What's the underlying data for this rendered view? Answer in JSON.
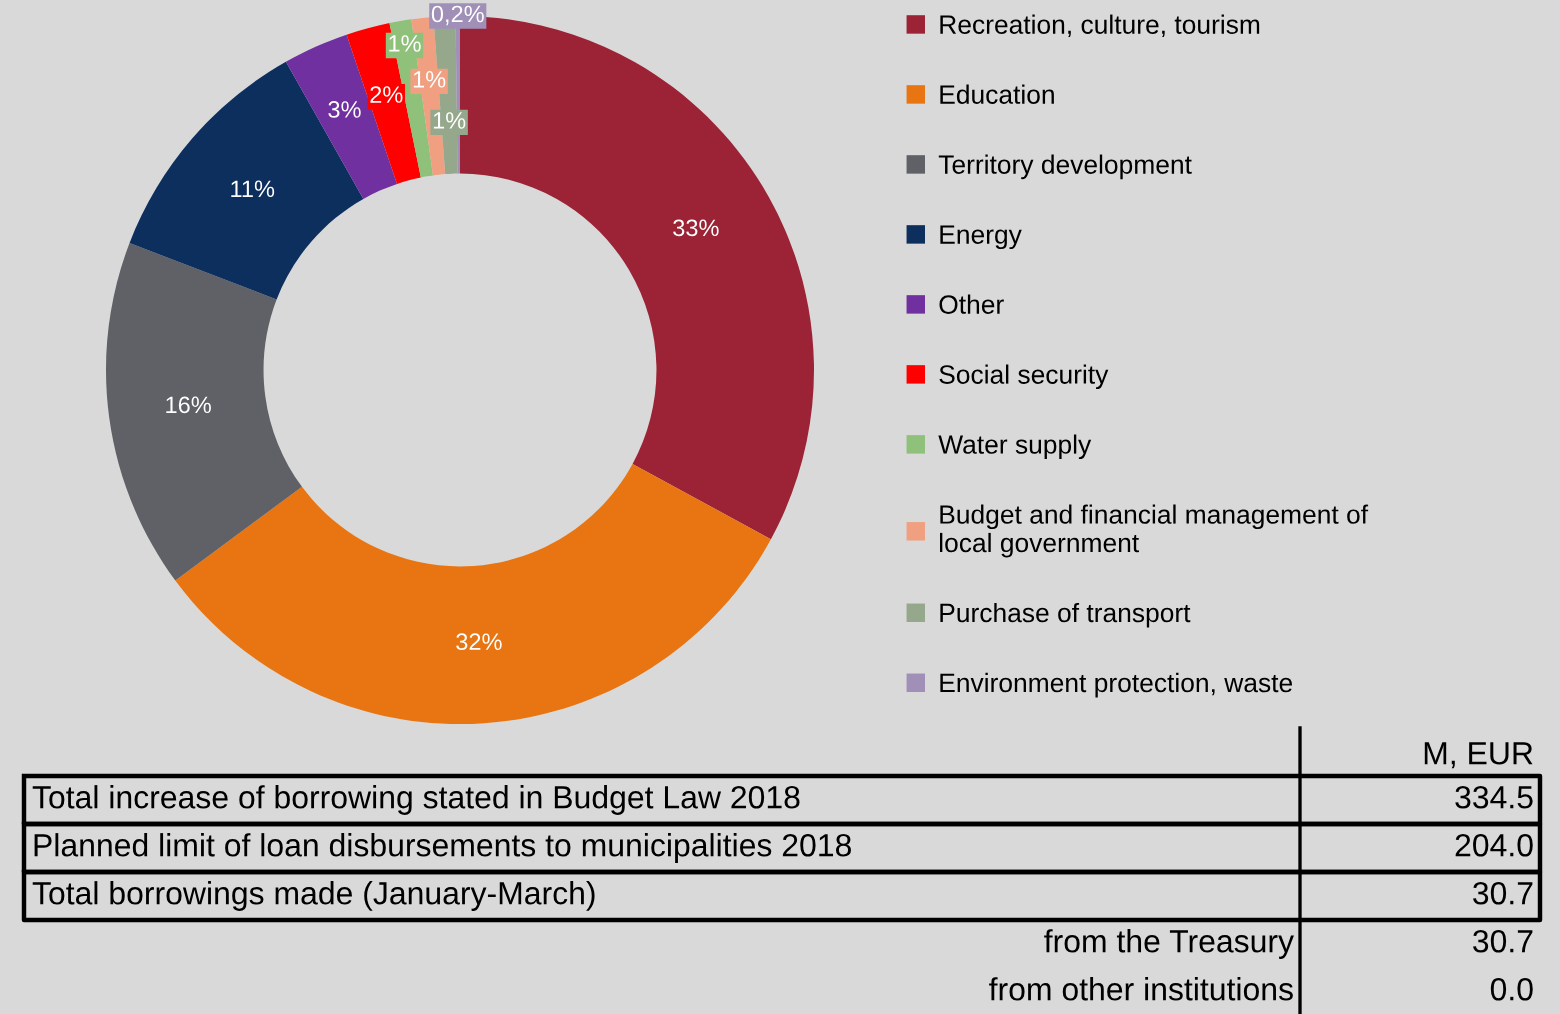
{
  "chart_data": {
    "type": "donut",
    "categories": [
      "Recreation, culture, tourism",
      "Education",
      "Territory development",
      "Energy",
      "Other",
      "Social security",
      "Water supply",
      "Budget and financial management of\nlocal government",
      "Purchase of transport",
      "Environment protection, waste"
    ],
    "values": [
      33,
      32,
      16,
      11,
      3,
      2,
      1,
      1,
      1,
      0.2
    ],
    "value_labels": [
      "33%",
      "32%",
      "16%",
      "11%",
      "3%",
      "2%",
      "1%",
      "1%",
      "1%",
      "0,2%"
    ],
    "colors": [
      "#9b2335",
      "#e87511",
      "#5f6166",
      "#0d2f5e",
      "#7030a0",
      "#ff0000",
      "#8fc17a",
      "#f0a080",
      "#96a88c",
      "#a090b8"
    ],
    "legend": "right",
    "annotations": [
      "M, EUR",
      "Total increase of borrowing stated in Budget Law 2018",
      "334.5",
      "Planned limit of loan disbursements to municipalities 2018",
      "204.0",
      "Total borrowings made (January-March)",
      "30.7",
      "from the Treasury",
      "30.7",
      "from other institutions",
      "0.0"
    ]
  }
}
